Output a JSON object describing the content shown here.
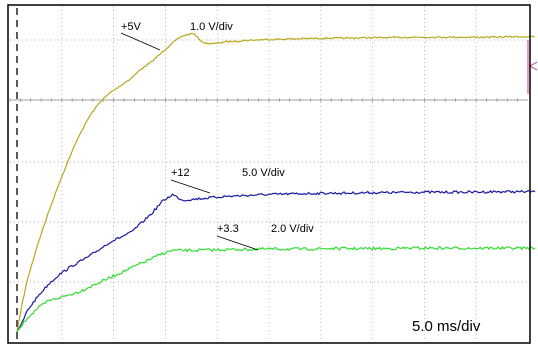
{
  "chart_data": {
    "type": "line",
    "title": "",
    "xlabel": "",
    "ylabel": "",
    "timebase_label": "5.0 ms/div",
    "x_unit": "ms",
    "x_per_div": 5.0,
    "x_divisions": 10,
    "grid": true,
    "series": [
      {
        "name": "+5V",
        "scale_label": "1.0 V/div",
        "color": "#b8a81e",
        "x": [
          0,
          0.5,
          1,
          2,
          3,
          4,
          5,
          6,
          7,
          8,
          9,
          10,
          11,
          12,
          13,
          14,
          15,
          16,
          17,
          18,
          19,
          20,
          22,
          24,
          26,
          28,
          30,
          32,
          34,
          36,
          38,
          40,
          42,
          44,
          46,
          48,
          50
        ],
        "values": [
          0,
          0.6,
          1.1,
          1.85,
          2.5,
          3.1,
          3.65,
          4.15,
          4.55,
          4.85,
          5.05,
          5.2,
          5.35,
          5.55,
          5.7,
          5.9,
          6.1,
          6.25,
          6.3,
          6.1,
          6.08,
          6.12,
          6.15,
          6.17,
          6.18,
          6.19,
          6.2,
          6.2,
          6.21,
          6.21,
          6.22,
          6.22,
          6.22,
          6.22,
          6.22,
          6.23,
          6.23
        ]
      },
      {
        "name": "+12",
        "scale_label": "5.0 V/div",
        "color": "#1a1aa0",
        "x": [
          0,
          0.5,
          1,
          2,
          3,
          4,
          5,
          6,
          7,
          8,
          9,
          10,
          11,
          12,
          13,
          14,
          15,
          16,
          17,
          18,
          19,
          20,
          22,
          24,
          26,
          28,
          30,
          32,
          34,
          36,
          38,
          40,
          42,
          44,
          46,
          48,
          50
        ],
        "values": [
          0,
          0.2,
          0.45,
          0.75,
          1.0,
          1.2,
          1.35,
          1.48,
          1.6,
          1.75,
          1.9,
          2.0,
          2.1,
          2.3,
          2.5,
          2.75,
          2.9,
          2.78,
          2.8,
          2.82,
          2.84,
          2.86,
          2.88,
          2.9,
          2.91,
          2.92,
          2.93,
          2.93,
          2.94,
          2.94,
          2.95,
          2.95,
          2.95,
          2.95,
          2.96,
          2.96,
          2.96
        ]
      },
      {
        "name": "+3.3",
        "scale_label": "2.0 V/div",
        "color": "#33dd33",
        "x": [
          0,
          0.5,
          1,
          2,
          3,
          4,
          5,
          6,
          7,
          8,
          9,
          10,
          11,
          12,
          13,
          14,
          15,
          16,
          17,
          18,
          19,
          20,
          22,
          24,
          26,
          28,
          30,
          32,
          34,
          36,
          38,
          40,
          42,
          44,
          46,
          48,
          50
        ],
        "values": [
          0,
          0.15,
          0.3,
          0.5,
          0.65,
          0.72,
          0.78,
          0.85,
          0.95,
          1.05,
          1.15,
          1.25,
          1.35,
          1.45,
          1.55,
          1.65,
          1.72,
          1.72,
          1.72,
          1.73,
          1.73,
          1.74,
          1.74,
          1.75,
          1.75,
          1.75,
          1.76,
          1.76,
          1.76,
          1.76,
          1.77,
          1.77,
          1.77,
          1.77,
          1.77,
          1.77,
          1.77
        ]
      }
    ]
  }
}
